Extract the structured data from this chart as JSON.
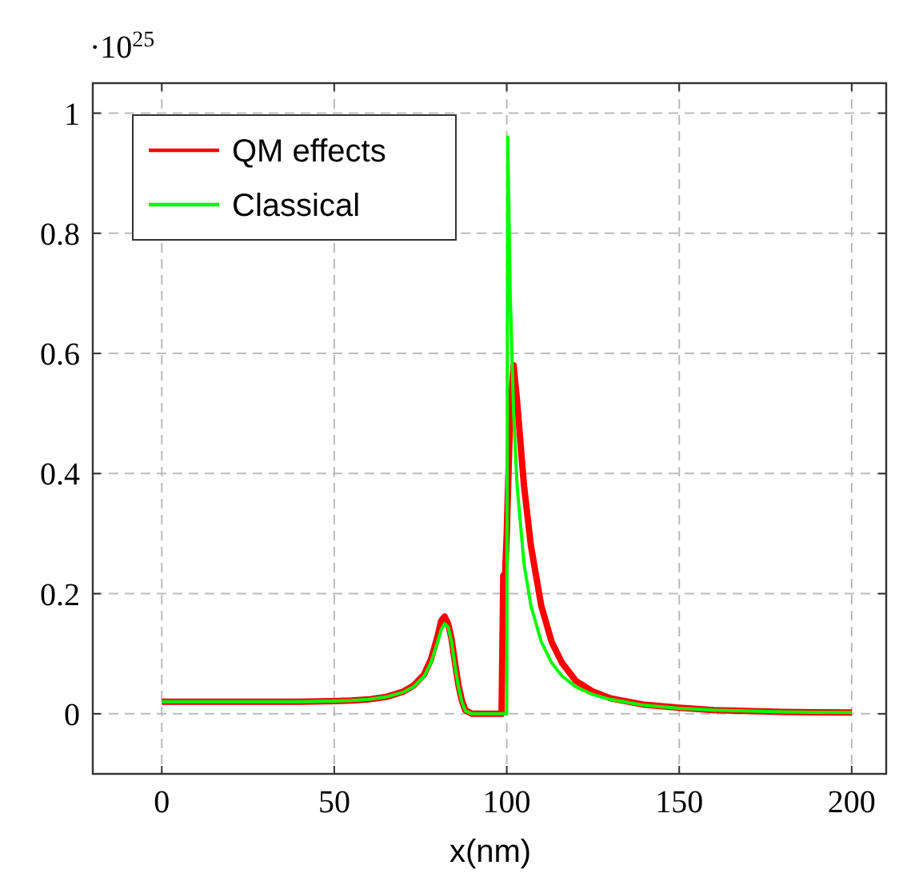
{
  "chart_data": {
    "type": "line",
    "xlabel": "x(nm)",
    "annotations": [
      "·10$^{25}$"
    ],
    "xlim": [
      -20,
      210
    ],
    "ylim": [
      -0.1,
      1.05
    ],
    "xticks": [
      0,
      50,
      100,
      150,
      200
    ],
    "yticks": [
      0,
      0.2,
      0.4,
      0.6,
      0.8,
      1
    ],
    "grid": true,
    "legend": "top left",
    "line_style": "solid",
    "marker": "none",
    "series": [
      {
        "name": "QM effects",
        "color": "#ff0000",
        "x": [
          0,
          20,
          40,
          50,
          55,
          60,
          65,
          70,
          73,
          76,
          78,
          80,
          81,
          82,
          83,
          84,
          85,
          86,
          87,
          88,
          90,
          95,
          98.5,
          99,
          99.5,
          100,
          101,
          102,
          103,
          105,
          107,
          110,
          113,
          116,
          120,
          125,
          130,
          140,
          150,
          160,
          180,
          200
        ],
        "values": [
          0.02,
          0.02,
          0.02,
          0.021,
          0.022,
          0.024,
          0.028,
          0.037,
          0.047,
          0.065,
          0.09,
          0.13,
          0.155,
          0.162,
          0.15,
          0.125,
          0.085,
          0.048,
          0.022,
          0.006,
          0,
          0,
          0,
          0.23,
          0.23,
          0.3,
          0.5,
          0.58,
          0.52,
          0.38,
          0.28,
          0.18,
          0.12,
          0.085,
          0.055,
          0.037,
          0.026,
          0.015,
          0.01,
          0.006,
          0.003,
          0.002
        ]
      },
      {
        "name": "Classical",
        "color": "#00ff00",
        "x": [
          0,
          20,
          40,
          50,
          55,
          60,
          65,
          70,
          73,
          76,
          78,
          80,
          81,
          82,
          83,
          84,
          85,
          86,
          87,
          88,
          90,
          95,
          99.5,
          100,
          100.3,
          101,
          102,
          103,
          105,
          107,
          110,
          113,
          116,
          120,
          125,
          130,
          140,
          150,
          160,
          180,
          200
        ],
        "values": [
          0.02,
          0.02,
          0.02,
          0.021,
          0.022,
          0.024,
          0.028,
          0.036,
          0.045,
          0.062,
          0.085,
          0.12,
          0.14,
          0.15,
          0.145,
          0.12,
          0.08,
          0.045,
          0.02,
          0.005,
          0,
          0,
          0,
          0,
          0.96,
          0.7,
          0.5,
          0.38,
          0.25,
          0.18,
          0.12,
          0.085,
          0.063,
          0.045,
          0.032,
          0.024,
          0.014,
          0.009,
          0.006,
          0.003,
          0.002
        ]
      }
    ]
  }
}
